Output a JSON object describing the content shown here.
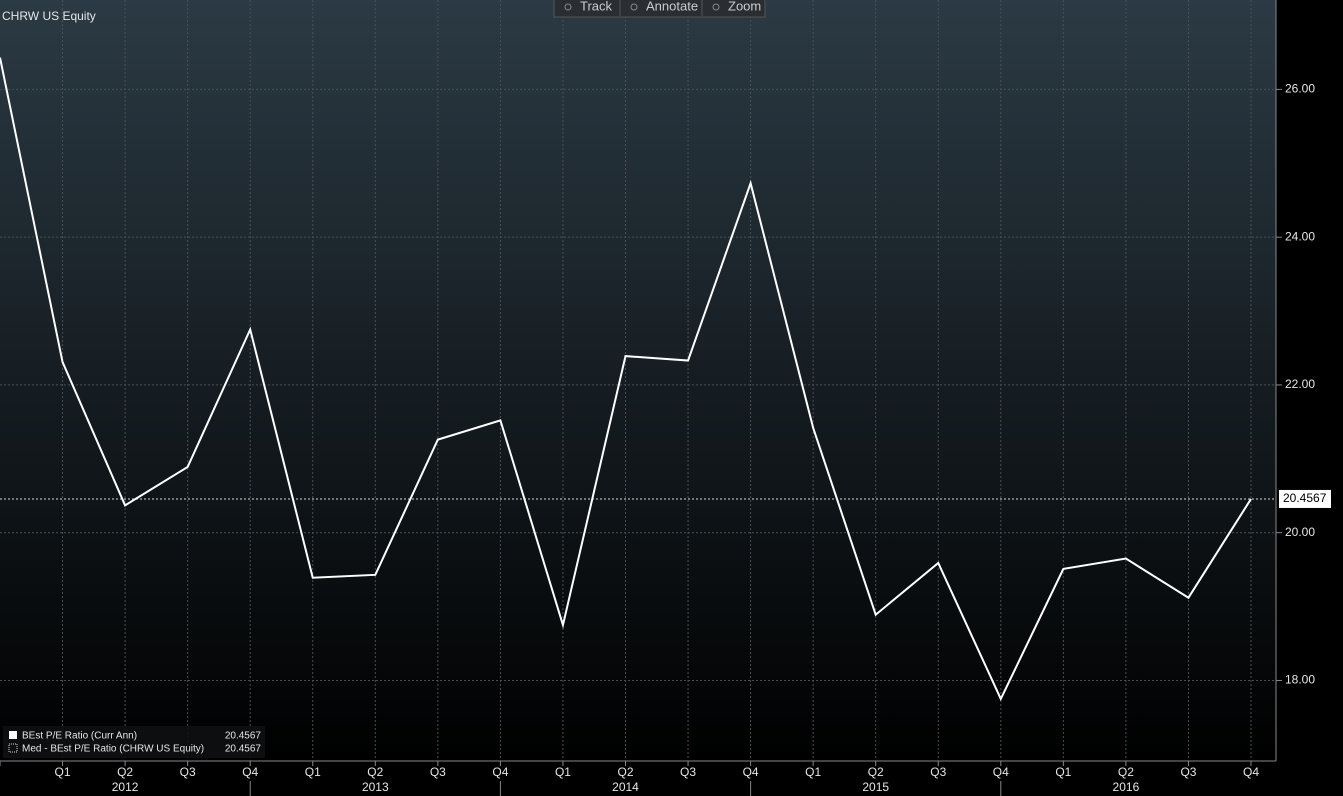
{
  "chart_data": {
    "type": "line",
    "title": "CHRW US Equity",
    "toolbar": [
      "Track",
      "Annotate",
      "Zoom"
    ],
    "categories": [
      null,
      "Q1",
      "Q2",
      "Q3",
      "Q4",
      "Q1",
      "Q2",
      "Q3",
      "Q4",
      "Q1",
      "Q2",
      "Q3",
      "Q4",
      "Q1",
      "Q2",
      "Q3",
      "Q4",
      "Q1",
      "Q2",
      "Q3",
      "Q4"
    ],
    "years": [
      "2012",
      "2013",
      "2014",
      "2015",
      "2016"
    ],
    "series": [
      {
        "name": "BEst P/E Ratio (Curr Ann)",
        "color": "#ffffff",
        "values": [
          26.43,
          22.31,
          20.37,
          20.89,
          22.75,
          19.39,
          19.43,
          21.26,
          21.52,
          18.75,
          22.39,
          22.33,
          24.73,
          21.42,
          18.89,
          19.59,
          17.75,
          19.51,
          19.65,
          19.12,
          20.4567
        ]
      }
    ],
    "median": {
      "name": "Med - BEst P/E Ratio (CHRW US Equity)",
      "value": 20.4567
    },
    "ylim": [
      16.91,
      27.21
    ],
    "yticks": [
      {
        "value": 18,
        "label": "18.00"
      },
      {
        "value": 20,
        "label": "20.00"
      },
      {
        "value": 22,
        "label": "22.00"
      },
      {
        "value": 24,
        "label": "24.00"
      },
      {
        "value": 26,
        "label": "26.00"
      }
    ],
    "grid": true
  }
}
